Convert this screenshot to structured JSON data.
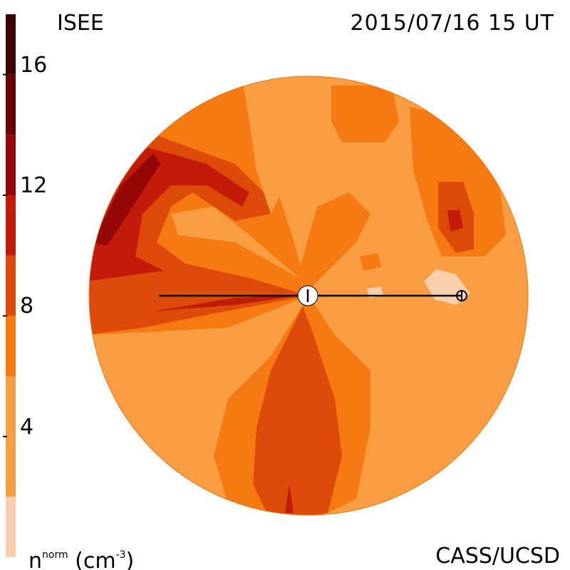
{
  "header": {
    "instrument": "ISEE",
    "datetime": "2015/07/16 15 UT"
  },
  "footer": {
    "credit": "CASS/UCSD"
  },
  "colorbar": {
    "quantity_base": "n",
    "quantity_sup": "norm",
    "unit_open": "(cm",
    "unit_sup": "-3",
    "unit_close": ")",
    "ticks": [
      {
        "value": 4,
        "label": "4"
      },
      {
        "value": 8,
        "label": "8"
      },
      {
        "value": 12,
        "label": "12"
      },
      {
        "value": 16,
        "label": "16"
      }
    ],
    "range": [
      0,
      18
    ],
    "levels": [
      {
        "from": 0,
        "to": 2,
        "color": "#f9d0ae"
      },
      {
        "from": 2,
        "to": 6,
        "color": "#f99d42"
      },
      {
        "from": 6,
        "to": 8,
        "color": "#f57a12"
      },
      {
        "from": 8,
        "to": 10,
        "color": "#dd4a0a"
      },
      {
        "from": 10,
        "to": 12,
        "color": "#c31b0a"
      },
      {
        "from": 12,
        "to": 14,
        "color": "#960707"
      },
      {
        "from": 14,
        "to": 16,
        "color": "#6a0505"
      },
      {
        "from": 16,
        "to": 18,
        "color": "#3a0303"
      }
    ]
  },
  "colors": {
    "c1": "#f99d42",
    "c2": "#f57a12",
    "c3": "#dd4a0a",
    "c4": "#c31b0a",
    "c5": "#960707",
    "c0": "#f9d0ae"
  }
}
